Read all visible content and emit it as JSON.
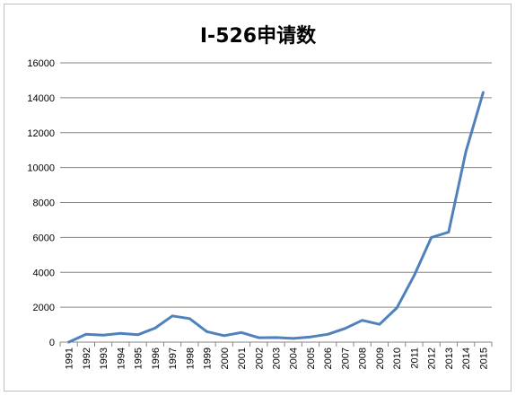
{
  "chart_data": {
    "type": "line",
    "title": "I-526申请数",
    "xlabel": "",
    "ylabel": "",
    "x": [
      "1991",
      "1992",
      "1993",
      "1994",
      "1995",
      "1996",
      "1997",
      "1998",
      "1999",
      "2000",
      "2001",
      "2002",
      "2003",
      "2004",
      "2005",
      "2006",
      "2007",
      "2008",
      "2009",
      "2010",
      "2011",
      "2012",
      "2013",
      "2014",
      "2015"
    ],
    "series": [
      {
        "values": [
          0,
          450,
          400,
          500,
          420,
          800,
          1500,
          1350,
          600,
          370,
          550,
          250,
          260,
          210,
          300,
          450,
          780,
          1250,
          1020,
          1960,
          3800,
          6000,
          6300,
          10900,
          14300
        ]
      }
    ],
    "ylim": [
      0,
      16000
    ],
    "yticks": [
      0,
      2000,
      4000,
      6000,
      8000,
      10000,
      12000,
      14000,
      16000
    ],
    "grid": true,
    "legend": "none",
    "line_color": "#4f81bd",
    "grid_color": "#868686"
  }
}
